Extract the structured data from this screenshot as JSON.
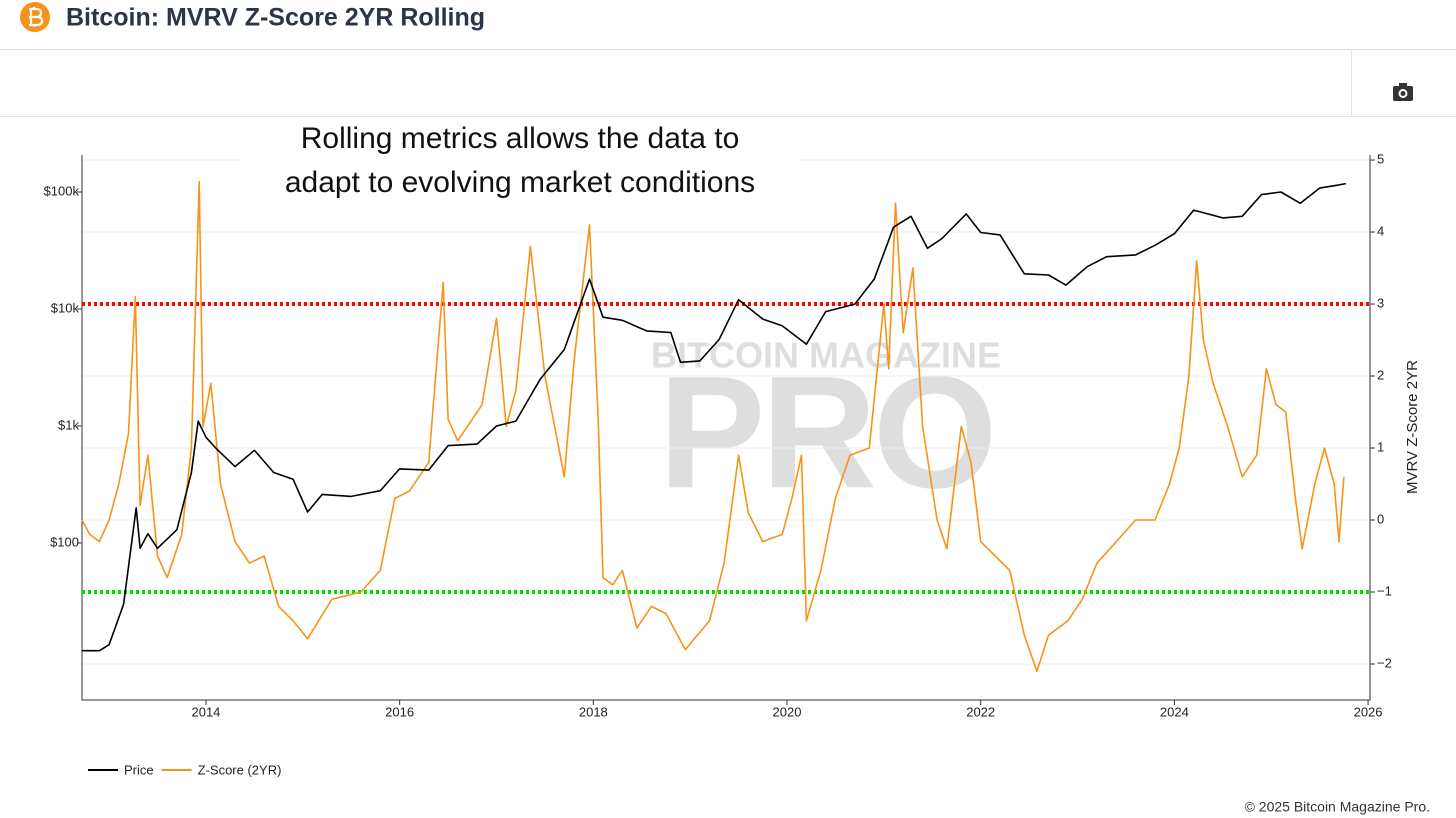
{
  "header": {
    "title": "Bitcoin: MVRV Z-Score 2YR Rolling"
  },
  "footer": "© 2025 Bitcoin Magazine Pro.",
  "chart_data": {
    "type": "line",
    "annotation": [
      "Rolling metrics allows the data to",
      "adapt to evolving market conditions"
    ],
    "watermark": [
      "BITCOIN MAGAZINE",
      "PRO"
    ],
    "y2_label": "MVRV Z-Score 2YR",
    "xlim": [
      2012.72,
      2026.02
    ],
    "xticks": [
      2014,
      2016,
      2018,
      2020,
      2022,
      2024,
      2026
    ],
    "ylim": [
      4.55,
      207000
    ],
    "yscale": "log",
    "yticks": [
      {
        "value": 100,
        "label": "$100"
      },
      {
        "value": 1000,
        "label": "$1k"
      },
      {
        "value": 10000,
        "label": "$10k"
      },
      {
        "value": 100000,
        "label": "$100k"
      }
    ],
    "y2lim": [
      -2.5,
      5.07
    ],
    "y2ticks": [
      {
        "value": -2,
        "label": "−2"
      },
      {
        "value": -1,
        "label": "−1"
      },
      0,
      1,
      2,
      3,
      4,
      5
    ],
    "grid": true,
    "hlines": [
      {
        "value": 3,
        "color": "#ff0000",
        "axis": "y2"
      },
      {
        "value": -1,
        "color": "#00dd00",
        "axis": "y2"
      }
    ],
    "series": [
      {
        "name": "Price",
        "color": "#000000",
        "axis": "y",
        "x": [
          2012.72,
          2012.9,
          2013.0,
          2013.15,
          2013.28,
          2013.32,
          2013.4,
          2013.5,
          2013.7,
          2013.85,
          2013.92,
          2014.0,
          2014.1,
          2014.3,
          2014.5,
          2014.7,
          2014.9,
          2015.05,
          2015.2,
          2015.5,
          2015.8,
          2016.0,
          2016.3,
          2016.5,
          2016.8,
          2017.0,
          2017.2,
          2017.45,
          2017.7,
          2017.96,
          2018.1,
          2018.3,
          2018.55,
          2018.8,
          2018.9,
          2019.1,
          2019.3,
          2019.5,
          2019.75,
          2019.95,
          2020.2,
          2020.4,
          2020.7,
          2020.9,
          2021.0,
          2021.1,
          2021.28,
          2021.45,
          2021.6,
          2021.85,
          2022.0,
          2022.2,
          2022.45,
          2022.7,
          2022.88,
          2023.1,
          2023.3,
          2023.6,
          2023.8,
          2024.0,
          2024.2,
          2024.5,
          2024.7,
          2024.9,
          2025.1,
          2025.3,
          2025.5,
          2025.7,
          2025.77
        ],
        "values": [
          12,
          12,
          13.5,
          30,
          200,
          90,
          120,
          90,
          130,
          400,
          1100,
          800,
          650,
          450,
          620,
          400,
          350,
          184,
          260,
          250,
          280,
          430,
          420,
          680,
          700,
          1000,
          1100,
          2500,
          4500,
          18000,
          8500,
          8000,
          6500,
          6300,
          3500,
          3600,
          5500,
          12000,
          8200,
          7200,
          5000,
          9500,
          11000,
          18000,
          30000,
          50000,
          62000,
          33000,
          40000,
          65000,
          45000,
          43000,
          20000,
          19500,
          16000,
          23000,
          28000,
          29000,
          35000,
          44000,
          70000,
          60000,
          62000,
          95000,
          100000,
          80000,
          108000,
          115000,
          118000
        ]
      },
      {
        "name": "Z-Score (2YR)",
        "color": "#f7931a",
        "axis": "y2",
        "x": [
          2012.72,
          2012.8,
          2012.9,
          2013.0,
          2013.1,
          2013.2,
          2013.27,
          2013.32,
          2013.4,
          2013.5,
          2013.6,
          2013.75,
          2013.85,
          2013.93,
          2013.97,
          2014.05,
          2014.15,
          2014.3,
          2014.45,
          2014.6,
          2014.75,
          2014.9,
          2015.05,
          2015.3,
          2015.6,
          2015.8,
          2015.95,
          2016.1,
          2016.3,
          2016.45,
          2016.5,
          2016.6,
          2016.85,
          2017.0,
          2017.1,
          2017.2,
          2017.35,
          2017.5,
          2017.6,
          2017.7,
          2017.8,
          2017.96,
          2018.05,
          2018.1,
          2018.2,
          2018.3,
          2018.45,
          2018.6,
          2018.75,
          2018.95,
          2019.2,
          2019.35,
          2019.5,
          2019.6,
          2019.75,
          2019.95,
          2020.05,
          2020.15,
          2020.2,
          2020.35,
          2020.5,
          2020.65,
          2020.85,
          2021.0,
          2021.05,
          2021.12,
          2021.2,
          2021.3,
          2021.4,
          2021.55,
          2021.65,
          2021.8,
          2021.9,
          2022.0,
          2022.15,
          2022.3,
          2022.45,
          2022.58,
          2022.7,
          2022.9,
          2023.05,
          2023.2,
          2023.4,
          2023.6,
          2023.8,
          2023.95,
          2024.05,
          2024.15,
          2024.23,
          2024.3,
          2024.4,
          2024.55,
          2024.7,
          2024.85,
          2024.95,
          2025.05,
          2025.15,
          2025.25,
          2025.32,
          2025.45,
          2025.55,
          2025.65,
          2025.7,
          2025.75
        ],
        "values": [
          0,
          -0.2,
          -0.3,
          0.0,
          0.5,
          1.2,
          3.1,
          0.2,
          0.9,
          -0.5,
          -0.8,
          -0.2,
          1.0,
          4.7,
          1.3,
          1.9,
          0.5,
          -0.3,
          -0.6,
          -0.5,
          -1.2,
          -1.4,
          -1.65,
          -1.1,
          -1.0,
          -0.7,
          0.3,
          0.4,
          0.8,
          3.3,
          1.4,
          1.1,
          1.6,
          2.8,
          1.3,
          1.8,
          3.8,
          2.0,
          1.3,
          0.6,
          2.2,
          4.1,
          1.4,
          -0.8,
          -0.9,
          -0.7,
          -1.5,
          -1.2,
          -1.3,
          -1.8,
          -1.4,
          -0.6,
          0.9,
          0.1,
          -0.3,
          -0.2,
          0.3,
          0.9,
          -1.4,
          -0.7,
          0.3,
          0.9,
          1.0,
          3.0,
          2.1,
          4.4,
          2.6,
          3.5,
          1.3,
          0.0,
          -0.4,
          1.3,
          0.8,
          -0.3,
          -0.5,
          -0.7,
          -1.6,
          -2.1,
          -1.6,
          -1.4,
          -1.1,
          -0.6,
          -0.3,
          0.0,
          0.0,
          0.5,
          1.0,
          2.0,
          3.6,
          2.5,
          1.9,
          1.3,
          0.6,
          0.9,
          2.1,
          1.6,
          1.5,
          0.3,
          -0.4,
          0.5,
          1.0,
          0.5,
          -0.3,
          0.6
        ]
      }
    ]
  }
}
